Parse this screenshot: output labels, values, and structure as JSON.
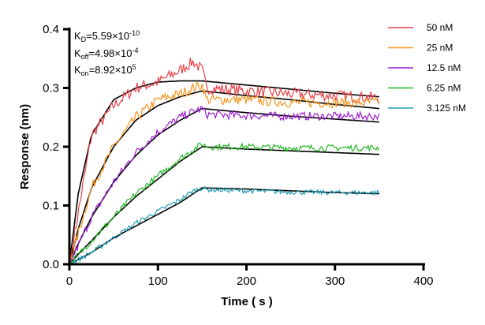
{
  "chart_data": {
    "type": "line",
    "xlabel": "Time ( s )",
    "ylabel": "Response (nm)",
    "xlim": [
      0,
      400
    ],
    "ylim": [
      0,
      0.4
    ],
    "x_ticks": [
      "0",
      "100",
      "200",
      "300",
      "400"
    ],
    "y_ticks": [
      "0.0",
      "0.1",
      "0.2",
      "0.3",
      "0.4"
    ],
    "grid": false,
    "legend_position": "top-right",
    "annotations": {
      "kd": {
        "label": "K",
        "sub": "D",
        "value": "=5.59×10",
        "exp": "-10"
      },
      "koff": {
        "label": "K",
        "sub": "off",
        "value": "=4.98×10",
        "exp": "-4"
      },
      "kon": {
        "label": "K",
        "sub": "on",
        "value": "=8.92×10",
        "exp": "5"
      }
    },
    "x": [
      0,
      25,
      50,
      75,
      100,
      125,
      140,
      150,
      155,
      200,
      250,
      300,
      350
    ],
    "series": [
      {
        "name": "50 nM",
        "color": "#e8434a",
        "values": [
          0,
          0.22,
          0.27,
          0.3,
          0.31,
          0.33,
          0.345,
          0.33,
          0.3,
          0.295,
          0.29,
          0.287,
          0.283
        ]
      },
      {
        "name": "25 nM",
        "color": "#f7941d",
        "values": [
          0,
          0.13,
          0.2,
          0.25,
          0.28,
          0.29,
          0.3,
          0.305,
          0.28,
          0.28,
          0.275,
          0.275,
          0.275
        ]
      },
      {
        "name": "12.5 nM",
        "color": "#a020d0",
        "values": [
          0,
          0.08,
          0.14,
          0.19,
          0.225,
          0.25,
          0.26,
          0.265,
          0.255,
          0.253,
          0.252,
          0.252,
          0.252
        ]
      },
      {
        "name": "6.25 nM",
        "color": "#22b822",
        "values": [
          0,
          0.04,
          0.08,
          0.12,
          0.15,
          0.18,
          0.195,
          0.205,
          0.2,
          0.2,
          0.198,
          0.198,
          0.198
        ]
      },
      {
        "name": "3.125 nM",
        "color": "#1e9db5",
        "values": [
          0,
          0.02,
          0.045,
          0.07,
          0.09,
          0.11,
          0.125,
          0.13,
          0.127,
          0.125,
          0.123,
          0.122,
          0.122
        ]
      }
    ],
    "fit_x": [
      0,
      10,
      25,
      50,
      75,
      100,
      125,
      150,
      200,
      250,
      300,
      350
    ],
    "fits": [
      {
        "color": "#000000",
        "values": [
          0,
          0.12,
          0.22,
          0.28,
          0.3,
          0.31,
          0.312,
          0.312,
          0.305,
          0.298,
          0.291,
          0.285
        ]
      },
      {
        "color": "#000000",
        "values": [
          0,
          0.06,
          0.13,
          0.2,
          0.245,
          0.27,
          0.285,
          0.295,
          0.287,
          0.28,
          0.272,
          0.265
        ]
      },
      {
        "color": "#000000",
        "values": [
          0,
          0.035,
          0.08,
          0.14,
          0.185,
          0.22,
          0.245,
          0.265,
          0.258,
          0.252,
          0.247,
          0.242
        ]
      },
      {
        "color": "#000000",
        "values": [
          0,
          0.017,
          0.04,
          0.08,
          0.115,
          0.145,
          0.175,
          0.2,
          0.196,
          0.193,
          0.19,
          0.187
        ]
      },
      {
        "color": "#000000",
        "values": [
          0,
          0.008,
          0.02,
          0.045,
          0.065,
          0.085,
          0.105,
          0.13,
          0.128,
          0.125,
          0.122,
          0.12
        ]
      }
    ]
  }
}
